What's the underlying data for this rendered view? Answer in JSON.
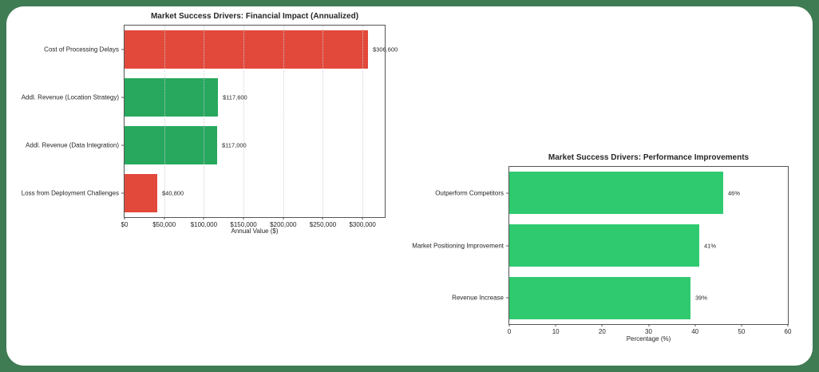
{
  "page": {
    "background_color": "#3f7b53",
    "panel_color": "#ffffff"
  },
  "chart_data": [
    {
      "type": "bar",
      "orientation": "horizontal",
      "title": "Market Success Drivers: Financial Impact (Annualized)",
      "categories": [
        "Cost of Processing Delays",
        "Addl. Revenue (Location Strategy)",
        "Addl. Revenue (Data Integration)",
        "Loss from Deployment Challenges"
      ],
      "values": [
        306600,
        117600,
        117000,
        40800
      ],
      "value_labels": [
        "$306,600",
        "$117,600",
        "$117,000",
        "$40,800"
      ],
      "bar_colors": [
        "#e2493b",
        "#27a85e",
        "#27a85e",
        "#e2493b"
      ],
      "xlabel": "Annual Value ($)",
      "xlim": [
        0,
        328000
      ],
      "xticks": [
        0,
        50000,
        100000,
        150000,
        200000,
        250000,
        300000
      ],
      "xtick_labels": [
        "$0",
        "$50,000",
        "$100,000",
        "$150,000",
        "$200,000",
        "$250,000",
        "$300,000"
      ],
      "grid": true,
      "legend": false
    },
    {
      "type": "bar",
      "orientation": "horizontal",
      "title": "Market Success Drivers: Performance Improvements",
      "categories": [
        "Outperform Competitors",
        "Market Positioning Improvement",
        "Revenue Increase"
      ],
      "values": [
        46,
        41,
        39
      ],
      "value_labels": [
        "46%",
        "41%",
        "39%"
      ],
      "bar_colors": [
        "#2fca6f",
        "#2fca6f",
        "#2fca6f"
      ],
      "xlabel": "Percentage (%)",
      "xlim": [
        0,
        60
      ],
      "xticks": [
        0,
        10,
        20,
        30,
        40,
        50,
        60
      ],
      "xtick_labels": [
        "0",
        "10",
        "20",
        "30",
        "40",
        "50",
        "60"
      ],
      "grid": false,
      "legend": false
    }
  ]
}
